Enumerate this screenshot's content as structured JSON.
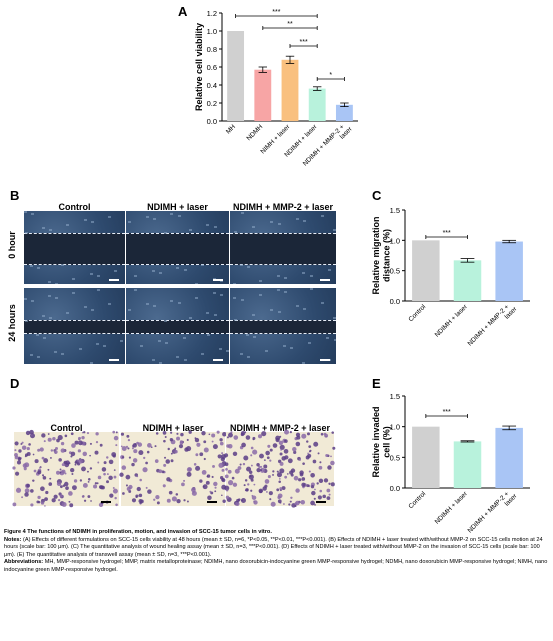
{
  "panels": {
    "a": "A",
    "b": "B",
    "c": "C",
    "d": "D",
    "e": "E"
  },
  "panel_b": {
    "columns": [
      "Control",
      "NDIMH + laser",
      "NDIMH + MMP-2 + laser"
    ],
    "rows": [
      "0 hour",
      "24 hours"
    ]
  },
  "panel_d": {
    "columns": [
      "Control",
      "NDIMH + laser",
      "NDIMH + MMP-2 + laser"
    ]
  },
  "chart_data": [
    {
      "panel": "A",
      "type": "bar",
      "ylabel": "Relative cell viability",
      "ylim": [
        0,
        1.2
      ],
      "yticks": [
        "0.0",
        "0.2",
        "0.4",
        "0.6",
        "0.8",
        "1.0",
        "1.2"
      ],
      "categories": [
        "MH",
        "NDMH",
        "NIMH + laser",
        "NDIMH + laser",
        "NDIMH + MMP-2 + laser"
      ],
      "values": [
        1.0,
        0.57,
        0.68,
        0.36,
        0.18
      ],
      "errors": [
        0,
        0.03,
        0.04,
        0.02,
        0.02
      ],
      "colors": [
        "#d0d0d0",
        "#f7a5a5",
        "#f9c07f",
        "#b8f2dc",
        "#a9c5f5"
      ],
      "significance": [
        {
          "from": 0,
          "to": 3,
          "label": "***"
        },
        {
          "from": 1,
          "to": 3,
          "label": "**"
        },
        {
          "from": 2,
          "to": 3,
          "label": "***"
        },
        {
          "from": 3,
          "to": 4,
          "label": "*"
        }
      ]
    },
    {
      "panel": "C",
      "type": "bar",
      "ylabel": "Relative migration distance (%)",
      "ylim": [
        0,
        1.5
      ],
      "yticks": [
        "0.0",
        "0.5",
        "1.0",
        "1.5"
      ],
      "categories": [
        "Control",
        "NDIMH + laser",
        "NDIMH + MMP-2 + laser"
      ],
      "values": [
        1.0,
        0.67,
        0.98
      ],
      "errors": [
        0,
        0.03,
        0.02
      ],
      "colors": [
        "#d0d0d0",
        "#b8f2dc",
        "#a9c5f5"
      ],
      "significance": [
        {
          "from": 0,
          "to": 1,
          "label": "***"
        }
      ]
    },
    {
      "panel": "E",
      "type": "bar",
      "ylabel": "Relative invaded cell (%)",
      "ylim": [
        0,
        1.5
      ],
      "yticks": [
        "0.0",
        "0.5",
        "1.0",
        "1.5"
      ],
      "categories": [
        "Control",
        "NDIMH + laser",
        "NDIMH + MMP-2 + laser"
      ],
      "values": [
        1.0,
        0.76,
        0.98
      ],
      "errors": [
        0,
        0.01,
        0.03
      ],
      "colors": [
        "#d0d0d0",
        "#b8f2dc",
        "#a9c5f5"
      ],
      "significance": [
        {
          "from": 0,
          "to": 1,
          "label": "***"
        }
      ]
    }
  ],
  "caption": {
    "title": "Figure 4 The functions of NDIMH in proliferation, motion, and invasion of SCC-15 tumor cells in vitro.",
    "notes_label": "Notes:",
    "notes": "(A) Effects of different formulations on SCC-15 cells viability at 48 hours (mean ± SD, n=6, *P<0.05, **P<0.01, ***P<0.001). (B) Effects of NDIMH + laser treated with/without MMP-2 on SCC-15 cells motion at 24 hours (scale bar: 100 μm). (C) The quantitative analysis of wound healing assay (mean ± SD, n=3, ***P<0.001). (D) Effects of NDIMH + laser treated with/without MMP-2 on the invasion of SCC-15 cells (scale bar: 100 μm). (E) The quantitative analysis of transwell assay (mean ± SD, n=3, ***P<0.001).",
    "abbrev_label": "Abbreviations:",
    "abbrev": "MH, MMP-responsive hydrogel; MMP, matrix metalloproteinase; NDIMH, nano doxorubicin-indocyanine green MMP-responsive hydrogel; NDMH, nano doxorubicin MMP-responsive hydrogel; NIMH, nano indocyanine green MMP-responsive hydrogel."
  }
}
